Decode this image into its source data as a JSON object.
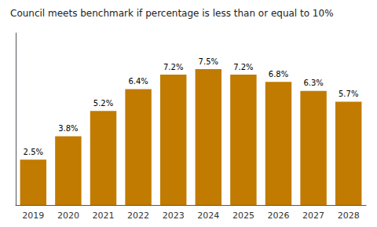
{
  "chart_data": {
    "type": "bar",
    "title": "Council meets benchmark if percentage is less than or equal to 10%",
    "categories": [
      "2019",
      "2020",
      "2021",
      "2022",
      "2023",
      "2024",
      "2025",
      "2026",
      "2027",
      "2028"
    ],
    "values": [
      2.5,
      3.8,
      5.2,
      6.4,
      7.2,
      7.5,
      7.2,
      6.8,
      6.3,
      5.7
    ],
    "value_labels": [
      "2.5%",
      "3.8%",
      "5.2%",
      "6.4%",
      "7.2%",
      "7.5%",
      "7.2%",
      "6.8%",
      "6.3%",
      "5.7%"
    ],
    "data_labels": true,
    "color": "#C17B00",
    "ylim": [
      0,
      9.5
    ],
    "tick_labels": "x",
    "grid": false
  }
}
